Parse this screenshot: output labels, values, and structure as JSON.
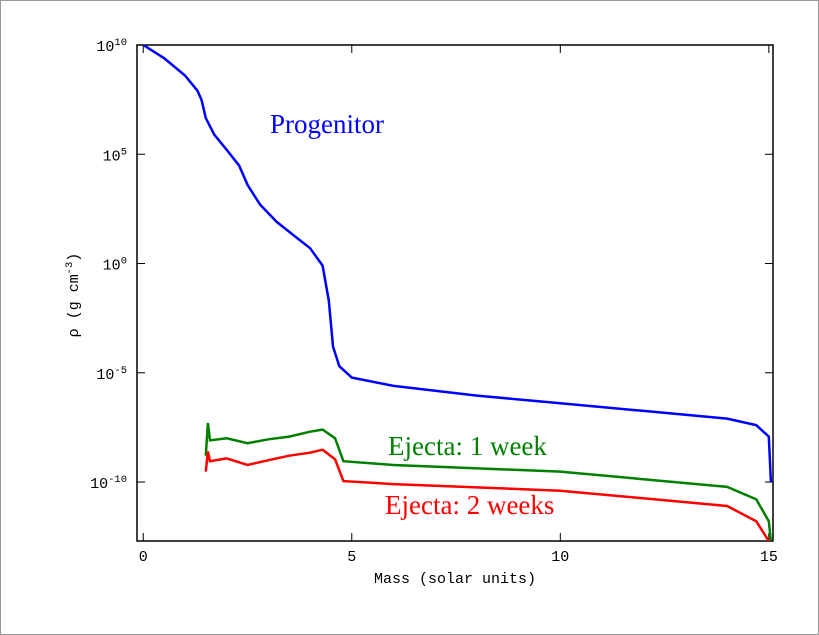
{
  "chart_data": {
    "type": "line",
    "xlabel": "Mass (solar units)",
    "ylabel": "ρ (g cm^{-3})",
    "log_y": true,
    "xlim": [
      -0.15,
      15.1
    ],
    "xticks": [
      0,
      5,
      10,
      15
    ],
    "ylim": [
      2e-13,
      10000000000.0
    ],
    "yticks": [
      {
        "value": 10000000000.0,
        "label": "10^{10}"
      },
      {
        "value": 100000.0,
        "label": "10^{5}"
      },
      {
        "value": 1,
        "label": "10^{0}"
      },
      {
        "value": 1e-05,
        "label": "10^{-5}"
      },
      {
        "value": 1e-10,
        "label": "10^{-10}"
      }
    ],
    "series": [
      {
        "name": "Progenitor",
        "color": "#0000ff",
        "x": [
          0,
          0.5,
          1,
          1.3,
          1.4,
          1.5,
          1.7,
          2,
          2.3,
          2.5,
          2.8,
          3.2,
          3.6,
          4.0,
          4.3,
          4.45,
          4.55,
          4.7,
          5,
          6,
          8,
          10,
          12,
          14,
          14.7,
          15,
          15.05
        ],
        "values": [
          10000000000.0,
          2500000000.0,
          400000000.0,
          80000000.0,
          30000000.0,
          4500000.0,
          800000.0,
          160000.0,
          30000.0,
          4000.0,
          500,
          80,
          20,
          5,
          0.8,
          0.02,
          0.00016,
          2e-05,
          6e-06,
          2.5e-06,
          9e-07,
          4e-07,
          1.8e-07,
          8e-08,
          4e-08,
          1.2e-08,
          1e-10
        ]
      },
      {
        "name": "Ejecta: 1 week",
        "color": "#008000",
        "x": [
          1.5,
          1.55,
          1.6,
          2,
          2.5,
          3,
          3.5,
          4,
          4.3,
          4.6,
          4.8,
          6,
          10,
          14,
          14.7,
          15,
          15.05
        ],
        "values": [
          1.6e-09,
          5e-08,
          8e-09,
          1e-08,
          6e-09,
          9e-09,
          1.2e-08,
          2e-08,
          2.5e-08,
          1e-08,
          9e-10,
          6e-10,
          3e-10,
          6e-11,
          1.6e-11,
          1.6e-12,
          2e-13
        ]
      },
      {
        "name": "Ejecta: 2 weeks",
        "color": "#ff0000",
        "x": [
          1.5,
          1.55,
          1.6,
          2,
          2.5,
          3,
          3.5,
          4,
          4.3,
          4.6,
          4.8,
          6,
          10,
          14,
          14.7,
          15
        ],
        "values": [
          3e-10,
          2.5e-09,
          9e-10,
          1.2e-09,
          6e-10,
          1e-09,
          1.6e-09,
          2.2e-09,
          3e-09,
          1.1e-09,
          1.1e-10,
          8e-11,
          4e-11,
          8e-12,
          1.6e-12,
          2e-13
        ]
      }
    ]
  }
}
